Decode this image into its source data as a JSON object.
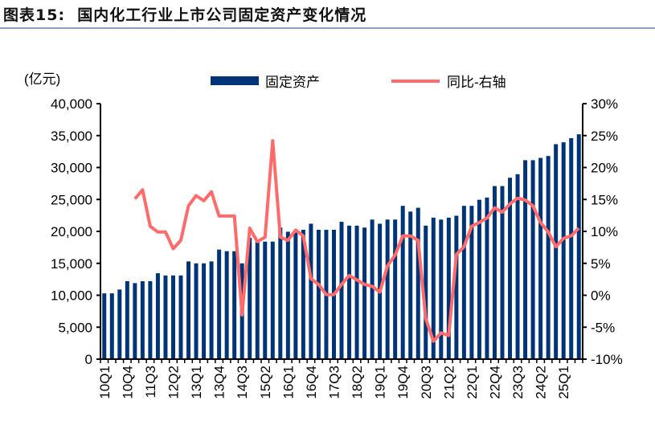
{
  "title": "图表15:  国内化工行业上市公司固定资产变化情况",
  "chart_data": {
    "type": "bar+line",
    "title": "国内化工行业上市公司固定资产变化情况",
    "unit_label": "(亿元)",
    "legend": [
      {
        "name": "固定资产",
        "kind": "bar",
        "color": "#003478"
      },
      {
        "name": "同比-右轴",
        "kind": "line",
        "color": "#ff6b6b"
      }
    ],
    "legend_position": "top-center",
    "categories": [
      "10Q1",
      "10Q2",
      "10Q3",
      "10Q4",
      "11Q1",
      "11Q2",
      "11Q3",
      "11Q4",
      "12Q1",
      "12Q2",
      "12Q3",
      "12Q4",
      "13Q1",
      "13Q2",
      "13Q3",
      "13Q4",
      "14Q1",
      "14Q2",
      "14Q3",
      "14Q4",
      "15Q1",
      "15Q2",
      "15Q3",
      "15Q4",
      "16Q1",
      "16Q2",
      "16Q3",
      "16Q4",
      "17Q1",
      "17Q2",
      "17Q3",
      "17Q4",
      "18Q1",
      "18Q2",
      "18Q3",
      "18Q4",
      "19Q1",
      "19Q2",
      "19Q3",
      "19Q4",
      "20Q1",
      "20Q2",
      "20Q3",
      "20Q4",
      "21Q1",
      "21Q2",
      "21Q3",
      "21Q4",
      "22Q1",
      "22Q2",
      "22Q3",
      "22Q4",
      "23Q1",
      "23Q2",
      "23Q3",
      "23Q4",
      "24Q1",
      "24Q2",
      "24Q3",
      "24Q4",
      "25Q1",
      "25Q2",
      "25Q3"
    ],
    "shown_tick_labels": [
      "10Q1",
      "10Q4",
      "11Q3",
      "12Q2",
      "13Q1",
      "13Q4",
      "14Q3",
      "15Q2",
      "16Q1",
      "16Q4",
      "17Q3",
      "18Q2",
      "19Q1",
      "19Q4",
      "20Q3",
      "21Q2",
      "22Q1",
      "22Q4",
      "23Q3",
      "24Q2",
      "25Q1"
    ],
    "series": [
      {
        "name": "固定资产",
        "axis": "left",
        "values": [
          10300,
          10300,
          10900,
          12200,
          11900,
          12200,
          12200,
          13450,
          13100,
          13100,
          13100,
          15300,
          15000,
          15000,
          15300,
          17150,
          16900,
          16900,
          15000,
          19000,
          18400,
          18400,
          18400,
          20600,
          19950,
          20250,
          20250,
          21200,
          20250,
          20250,
          20250,
          21500,
          20900,
          20900,
          20600,
          21850,
          21200,
          21850,
          21850,
          24000,
          23100,
          23700,
          20900,
          22150,
          21850,
          22150,
          22450,
          24000,
          24000,
          24950,
          25300,
          27100,
          27100,
          28400,
          28950,
          31150,
          31150,
          31500,
          31800,
          33650,
          33950,
          34600,
          35200
        ]
      },
      {
        "name": "同比-右轴",
        "axis": "right",
        "values": [
          null,
          null,
          null,
          null,
          15.1,
          16.5,
          10.8,
          9.9,
          9.9,
          7.3,
          8.6,
          14.0,
          15.6,
          14.8,
          16.2,
          12.4,
          12.4,
          12.4,
          -3.1,
          10.5,
          8.4,
          9.1,
          24.2,
          9.1,
          8.6,
          10.2,
          9.3,
          2.6,
          1.7,
          0.1,
          0.1,
          1.7,
          3.1,
          2.4,
          1.7,
          1.4,
          0.5,
          4.6,
          6.3,
          9.3,
          9.3,
          8.6,
          -3.7,
          -7.2,
          -5.9,
          -6.3,
          6.4,
          7.6,
          10.8,
          11.4,
          12.1,
          13.7,
          13.0,
          14.3,
          15.2,
          14.9,
          14.0,
          11.4,
          9.9,
          7.6,
          8.9,
          9.3,
          10.5
        ]
      }
    ],
    "y_left": {
      "lim": [
        0,
        40000
      ],
      "ticks": [
        "0",
        "5,000",
        "10,000",
        "15,000",
        "20,000",
        "25,000",
        "30,000",
        "35,000",
        "40,000"
      ]
    },
    "y_right": {
      "lim": [
        -10,
        30
      ],
      "ticks": [
        "-10%",
        "-5%",
        "0%",
        "5%",
        "10%",
        "15%",
        "20%",
        "25%",
        "30%"
      ]
    },
    "grid": false
  }
}
